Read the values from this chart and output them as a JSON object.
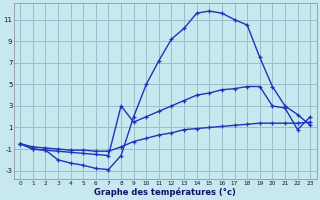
{
  "xlabel": "Graphe des températures (°c)",
  "background_color": "#c8e8f0",
  "grid_color": "#9bbece",
  "line_color": "#1a35bb",
  "xlim": [
    -0.5,
    23.5
  ],
  "ylim": [
    -3.8,
    12.5
  ],
  "xticks": [
    0,
    1,
    2,
    3,
    4,
    5,
    6,
    7,
    8,
    9,
    10,
    11,
    12,
    13,
    14,
    15,
    16,
    17,
    18,
    19,
    20,
    21,
    22,
    23
  ],
  "yticks": [
    -3,
    -1,
    1,
    3,
    5,
    7,
    9,
    11
  ],
  "line1_x": [
    0,
    1,
    2,
    3,
    4,
    5,
    6,
    7,
    8,
    9,
    10,
    11,
    12,
    13,
    14,
    15,
    16,
    17,
    18,
    19,
    20,
    21,
    22,
    23
  ],
  "line1_y": [
    -0.5,
    -1.0,
    -1.1,
    -2.0,
    -2.3,
    -2.5,
    -2.8,
    -2.9,
    -1.6,
    2.0,
    5.0,
    7.2,
    9.2,
    10.2,
    11.6,
    11.8,
    11.6,
    11.0,
    10.5,
    7.5,
    4.8,
    3.0,
    2.2,
    1.2
  ],
  "line1_style": "solid",
  "line2_x": [
    0,
    1,
    2,
    3,
    4,
    5,
    6,
    7,
    8,
    9,
    10,
    11,
    12,
    13,
    14,
    15,
    16,
    17,
    18,
    19,
    20,
    21,
    22,
    23
  ],
  "line2_y": [
    -0.5,
    -1.0,
    -1.1,
    -1.2,
    -1.3,
    -1.4,
    -1.5,
    -1.6,
    3.0,
    1.5,
    2.0,
    2.5,
    3.0,
    3.5,
    4.0,
    4.2,
    4.5,
    4.6,
    4.8,
    4.8,
    3.0,
    2.8,
    0.8,
    2.0
  ],
  "line2_style": "solid",
  "line3_x": [
    0,
    1,
    2,
    3,
    4,
    5,
    6,
    7,
    8,
    9,
    10,
    11,
    12,
    13,
    14,
    15,
    16,
    17,
    18,
    19,
    20,
    21,
    22,
    23
  ],
  "line3_y": [
    -0.5,
    -0.8,
    -0.9,
    -1.0,
    -1.1,
    -1.1,
    -1.2,
    -1.2,
    -0.8,
    -0.3,
    0.0,
    0.3,
    0.5,
    0.8,
    0.9,
    1.0,
    1.1,
    1.2,
    1.3,
    1.4,
    1.4,
    1.4,
    1.4,
    1.5
  ],
  "line3_style": "solid"
}
